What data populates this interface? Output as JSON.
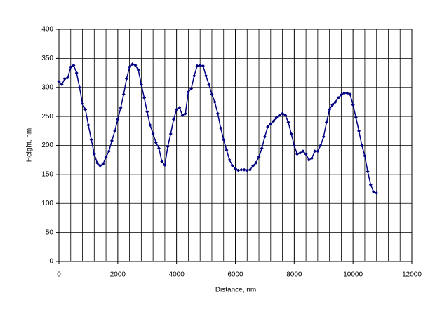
{
  "chart_data": {
    "type": "line",
    "x_label": "Distance, nm",
    "y_label": "Height, nm",
    "x": [
      0,
      100,
      200,
      300,
      400,
      500,
      600,
      700,
      800,
      900,
      1000,
      1100,
      1200,
      1300,
      1400,
      1500,
      1600,
      1700,
      1800,
      1900,
      2000,
      2100,
      2200,
      2300,
      2400,
      2500,
      2600,
      2700,
      2800,
      2900,
      3000,
      3100,
      3200,
      3300,
      3400,
      3500,
      3600,
      3700,
      3800,
      3900,
      4000,
      4100,
      4200,
      4300,
      4400,
      4500,
      4600,
      4700,
      4800,
      4900,
      5000,
      5100,
      5200,
      5300,
      5400,
      5500,
      5600,
      5700,
      5800,
      5900,
      6000,
      6100,
      6200,
      6300,
      6400,
      6500,
      6600,
      6700,
      6800,
      6900,
      7000,
      7100,
      7200,
      7300,
      7400,
      7500,
      7600,
      7700,
      7800,
      7900,
      8000,
      8100,
      8200,
      8300,
      8400,
      8500,
      8600,
      8700,
      8800,
      8900,
      9000,
      9100,
      9200,
      9300,
      9400,
      9500,
      9600,
      9700,
      9800,
      9900,
      10000,
      10100,
      10200,
      10300,
      10400,
      10500,
      10600,
      10700,
      10800
    ],
    "series": [
      {
        "name": "Height",
        "color": "#000080",
        "values": [
          310,
          305,
          315,
          317,
          335,
          338,
          325,
          300,
          272,
          262,
          235,
          210,
          185,
          170,
          165,
          168,
          180,
          190,
          208,
          225,
          245,
          265,
          288,
          315,
          335,
          340,
          338,
          330,
          305,
          282,
          258,
          235,
          220,
          205,
          195,
          172,
          166,
          198,
          220,
          245,
          262,
          265,
          252,
          255,
          292,
          298,
          320,
          337,
          338,
          337,
          320,
          305,
          288,
          275,
          255,
          230,
          210,
          192,
          175,
          165,
          160,
          157,
          158,
          158,
          157,
          158,
          165,
          170,
          180,
          195,
          215,
          232,
          237,
          242,
          248,
          252,
          255,
          252,
          240,
          220,
          200,
          185,
          187,
          190,
          185,
          175,
          178,
          190,
          190,
          200,
          215,
          240,
          262,
          270,
          275,
          282,
          287,
          290,
          290,
          288,
          270,
          248,
          225,
          200,
          182,
          155,
          132,
          120,
          118
        ]
      }
    ],
    "xlim": [
      0,
      12000
    ],
    "xticks": [
      0,
      2000,
      4000,
      6000,
      8000,
      10000,
      12000
    ],
    "xgrid_step": 400,
    "ylim": [
      0,
      400
    ],
    "yticks": [
      0,
      50,
      100,
      150,
      200,
      250,
      300,
      350,
      400
    ],
    "grid": true
  }
}
